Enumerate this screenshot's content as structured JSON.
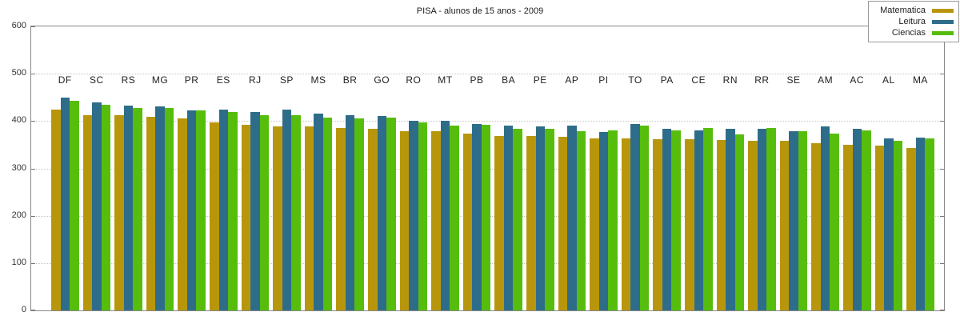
{
  "chart_data": {
    "type": "bar",
    "title": "PISA - alunos de 15 anos - 2009",
    "categories": [
      "DF",
      "SC",
      "RS",
      "MG",
      "PR",
      "ES",
      "RJ",
      "SP",
      "MS",
      "BR",
      "GO",
      "RO",
      "MT",
      "PB",
      "BA",
      "PE",
      "AP",
      "PI",
      "TO",
      "PA",
      "CE",
      "RN",
      "RR",
      "SE",
      "AM",
      "AC",
      "AL",
      "MA"
    ],
    "series": [
      {
        "name": "Matematica",
        "color": "#B8960C",
        "values": [
          425,
          413,
          412,
          409,
          405,
          398,
          392,
          389,
          388,
          386,
          384,
          378,
          378,
          374,
          369,
          368,
          366,
          364,
          363,
          362,
          362,
          360,
          359,
          359,
          354,
          350,
          349,
          343
        ]
      },
      {
        "name": "Leitura",
        "color": "#2E6D8A",
        "values": [
          449,
          439,
          433,
          431,
          423,
          424,
          420,
          424,
          415,
          412,
          411,
          400,
          400,
          394,
          390,
          389,
          391,
          377,
          393,
          383,
          381,
          384,
          384,
          379,
          388,
          383,
          364,
          365
        ]
      },
      {
        "name": "Ciencias",
        "color": "#56BD0D",
        "values": [
          442,
          434,
          428,
          428,
          422,
          420,
          412,
          412,
          408,
          405,
          408,
          397,
          390,
          392,
          383,
          384,
          378,
          381,
          391,
          381,
          386,
          372,
          386,
          378,
          374,
          380,
          358,
          364
        ]
      }
    ],
    "xlabel": "",
    "ylabel": "",
    "ylim": [
      0,
      600
    ],
    "yticks": [
      0,
      100,
      200,
      300,
      400,
      500,
      600
    ],
    "grid": true,
    "legend_position": "top-right"
  }
}
